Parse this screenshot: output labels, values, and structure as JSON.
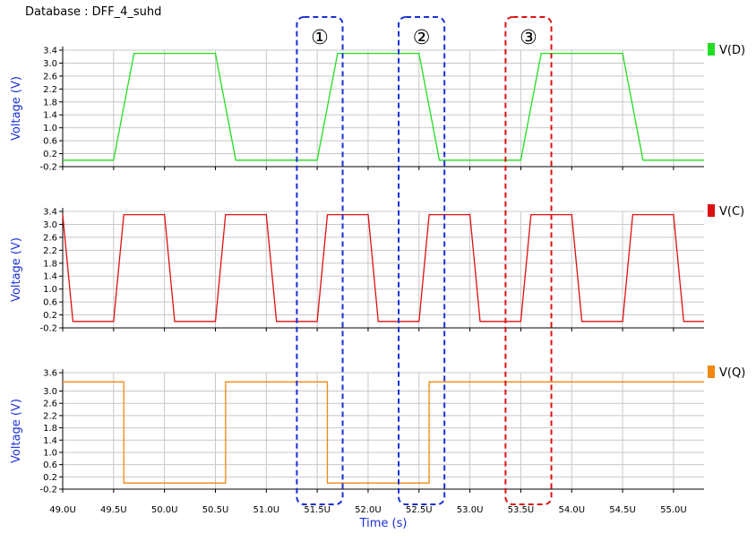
{
  "database_title": "Database : DFF_4_suhd",
  "chart_data": {
    "type": "line",
    "x_unit_labels": [
      "49.0U",
      "49.5U",
      "50.0U",
      "50.5U",
      "51.0U",
      "51.5U",
      "52.0U",
      "52.5U",
      "53.0U",
      "53.5U",
      "54.0U",
      "54.5U",
      "55.0U"
    ],
    "x_ticks": [
      49.0,
      49.5,
      50.0,
      50.5,
      51.0,
      51.5,
      52.0,
      52.5,
      53.0,
      53.5,
      54.0,
      54.5,
      55.0
    ],
    "xlim": [
      49.0,
      55.3
    ],
    "xlabel": "Time (s)",
    "panels": [
      {
        "name": "V(D)",
        "color": "#22dd22",
        "ylabel": "Voltage (V)",
        "ylim": [
          -0.2,
          3.4
        ],
        "yticks": [
          -0.2,
          0.2,
          0.6,
          1.0,
          1.4,
          1.8,
          2.2,
          2.6,
          3.0,
          3.4
        ],
        "ytick_labels": [
          "-0.2",
          "0.2",
          "0.6",
          "1.0",
          "1.4",
          "1.8",
          "2.2",
          "2.6",
          "3.0",
          "3.4"
        ],
        "x": [
          49.0,
          49.5,
          49.7,
          50.5,
          50.7,
          51.5,
          51.7,
          52.5,
          52.7,
          53.5,
          53.7,
          54.5,
          54.7,
          55.3
        ],
        "y": [
          0,
          0,
          3.3,
          3.3,
          0,
          0,
          3.3,
          3.3,
          0,
          0,
          3.3,
          3.3,
          0,
          0
        ]
      },
      {
        "name": "V(C)",
        "color": "#dd1111",
        "ylabel": "Voltage (V)",
        "ylim": [
          -0.2,
          3.4
        ],
        "yticks": [
          -0.2,
          0.2,
          0.6,
          1.0,
          1.4,
          1.8,
          2.2,
          2.6,
          3.0,
          3.4
        ],
        "ytick_labels": [
          "-0.2",
          "0.2",
          "0.6",
          "1.0",
          "1.4",
          "1.8",
          "2.2",
          "2.6",
          "3.0",
          "3.4"
        ],
        "x": [
          49.0,
          49.1,
          49.5,
          49.6,
          49.8,
          50.0,
          50.1,
          50.5,
          50.6,
          50.8,
          51.0,
          51.1,
          51.5,
          51.6,
          51.8,
          52.0,
          52.1,
          52.5,
          52.6,
          52.8,
          53.0,
          53.1,
          53.5,
          53.6,
          53.8,
          54.0,
          54.1,
          54.5,
          54.6,
          54.8,
          55.0,
          55.1,
          55.3
        ],
        "y": [
          3.3,
          0,
          0,
          3.3,
          3.3,
          3.3,
          0,
          0,
          3.3,
          3.3,
          3.3,
          0,
          0,
          3.3,
          3.3,
          3.3,
          0,
          0,
          3.3,
          3.3,
          3.3,
          0,
          0,
          3.3,
          3.3,
          3.3,
          0,
          0,
          3.3,
          3.3,
          3.3,
          0,
          0
        ]
      },
      {
        "name": "V(Q)",
        "color": "#ee8811",
        "ylabel": "Voltage (V)",
        "ylim": [
          -0.2,
          3.6
        ],
        "yticks": [
          -0.2,
          0.2,
          0.6,
          1.0,
          1.4,
          1.8,
          2.2,
          2.6,
          3.0,
          3.6
        ],
        "ytick_labels": [
          "-0.2",
          "0.2",
          "0.6",
          "1.0",
          "1.4",
          "1.8",
          "2.2",
          "2.6",
          "3.0",
          "3.6"
        ],
        "x": [
          49.0,
          49.6,
          49.6,
          50.6,
          50.6,
          51.6,
          51.6,
          52.6,
          52.6,
          55.3
        ],
        "y": [
          3.3,
          3.3,
          0,
          0,
          3.3,
          3.3,
          0,
          0,
          3.3,
          3.3
        ]
      }
    ],
    "annotations": [
      {
        "label": "①",
        "x_start": 51.3,
        "x_end": 51.75,
        "color": "#1a2fd6"
      },
      {
        "label": "②",
        "x_start": 52.3,
        "x_end": 52.75,
        "color": "#1a2fd6"
      },
      {
        "label": "③",
        "x_start": 53.35,
        "x_end": 53.8,
        "color": "#dd1111"
      }
    ]
  }
}
